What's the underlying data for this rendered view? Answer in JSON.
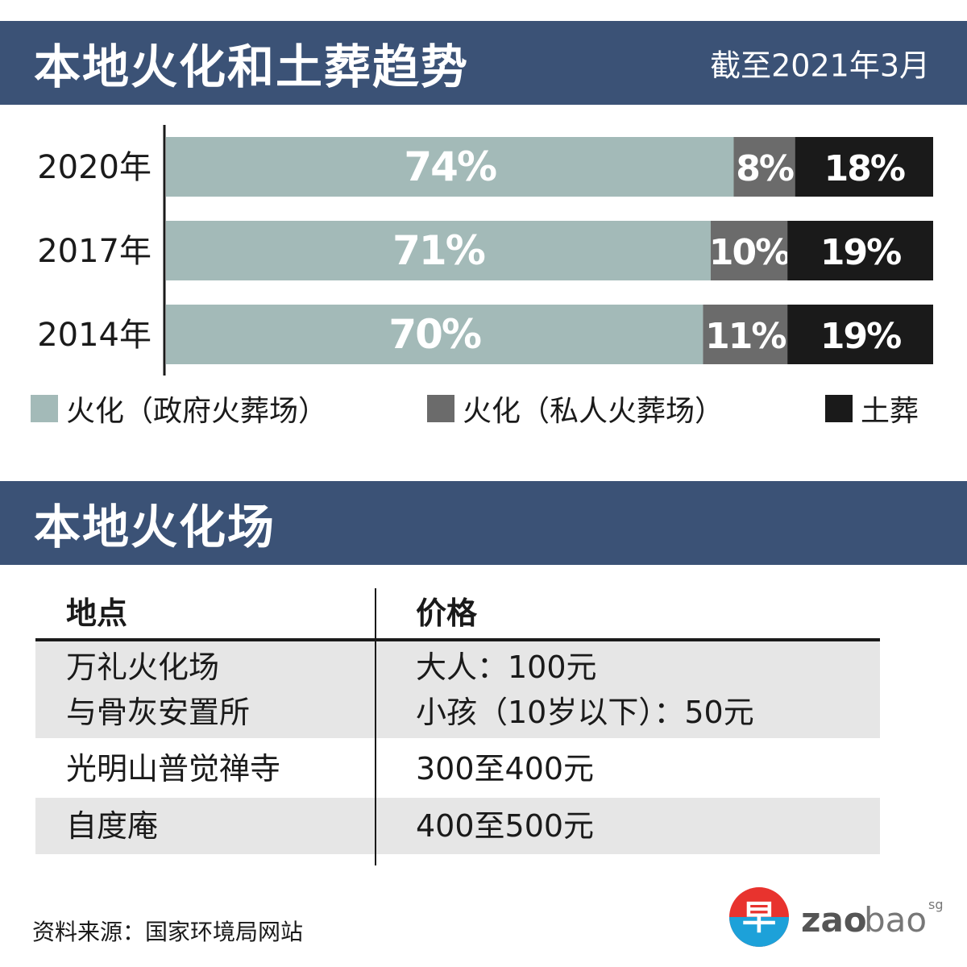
{
  "header": {
    "title": "本地火化和土葬趋势",
    "note": "截至2021年3月"
  },
  "chart_data": {
    "type": "bar",
    "orientation": "horizontal",
    "stacked": true,
    "percent": true,
    "categories": [
      "2020年",
      "2017年",
      "2014年"
    ],
    "series": [
      {
        "name": "火化（政府火葬场）",
        "values": [
          74,
          71,
          70
        ],
        "color": "#a3bab8",
        "label_color": "#ffffff"
      },
      {
        "name": "火化（私人火葬场）",
        "values": [
          8,
          10,
          11
        ],
        "color": "#6b6b6b",
        "label_color": "#ffffff"
      },
      {
        "name": "土葬",
        "values": [
          18,
          19,
          19
        ],
        "color": "#1a1a1a",
        "label_color": "#ffffff"
      }
    ],
    "xlim": [
      0,
      100
    ],
    "grid": false,
    "legend_position": "bottom"
  },
  "section2": {
    "title": "本地火化场"
  },
  "table": {
    "headers": [
      "地点",
      "价格"
    ],
    "rows": [
      {
        "place": [
          "万礼火化场",
          "与骨灰安置所"
        ],
        "price": [
          "大人：100元",
          "小孩（10岁以下）：50元"
        ],
        "shaded": true
      },
      {
        "place": [
          "光明山普觉禅寺"
        ],
        "price": [
          "300至400元"
        ],
        "shaded": false
      },
      {
        "place": [
          "自度庵"
        ],
        "price": [
          "400至500元"
        ],
        "shaded": true
      }
    ],
    "shade_color": "#e6e6e6"
  },
  "footer": {
    "source": "资料来源：国家环境局网站",
    "logo": {
      "glyph": "早",
      "word_a": "zao",
      "word_b": "bao",
      "suffix": "sg"
    }
  }
}
